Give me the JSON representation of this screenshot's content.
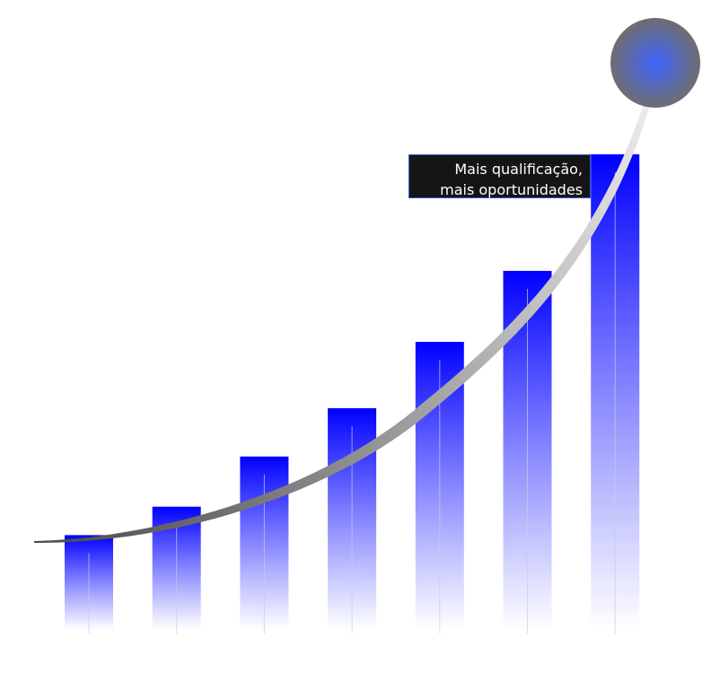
{
  "chart_data": {
    "type": "bar",
    "categories": [
      "",
      "",
      "",
      "",
      "",
      "",
      ""
    ],
    "values": [
      1.0,
      1.3,
      1.83,
      2.34,
      3.04,
      3.79,
      5.02
    ],
    "ylim": [
      0,
      5.5
    ],
    "grid": false,
    "trend_line": true,
    "annotation": {
      "line1": "Mais qualificação,",
      "line2": "mais oportunidades"
    },
    "colors": {
      "bar_top": "#0000ff",
      "bar_bottom": "#ffffff",
      "curve_dark": "#4a4a4a",
      "curve_light": "#f2f2f2",
      "circle_center": "#3f63ff",
      "circle_edge": "#6e6e6e",
      "callout_bg": "#151515",
      "callout_border": "#2a5bd7"
    }
  }
}
